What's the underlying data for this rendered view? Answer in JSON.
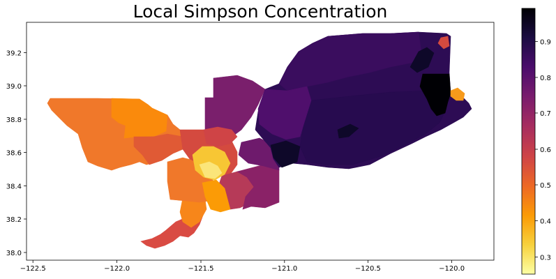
{
  "title": "Local Simpson Concentration",
  "colors": {
    "cmap": "inferno_r",
    "stops": [
      "#fcffa4",
      "#f7d13d",
      "#fb9b06",
      "#ed6925",
      "#cf4446",
      "#a52c60",
      "#781c6d",
      "#4a0c6b",
      "#1b0c41",
      "#000004"
    ]
  },
  "map": {
    "x_ticks": [
      "−122.5",
      "−122.0",
      "−121.5",
      "−121.0",
      "−120.5",
      "−120.0"
    ],
    "y_ticks": [
      "38.0",
      "38.2",
      "38.4",
      "38.6",
      "38.8",
      "39.0",
      "39.2"
    ],
    "xlim": [
      -122.55,
      -119.75
    ],
    "ylim": [
      37.97,
      39.37
    ]
  },
  "colorbar": {
    "ticks": [
      "0.3",
      "0.4",
      "0.5",
      "0.6",
      "0.7",
      "0.8",
      "0.9"
    ],
    "range": [
      0.26,
      0.99
    ]
  }
}
